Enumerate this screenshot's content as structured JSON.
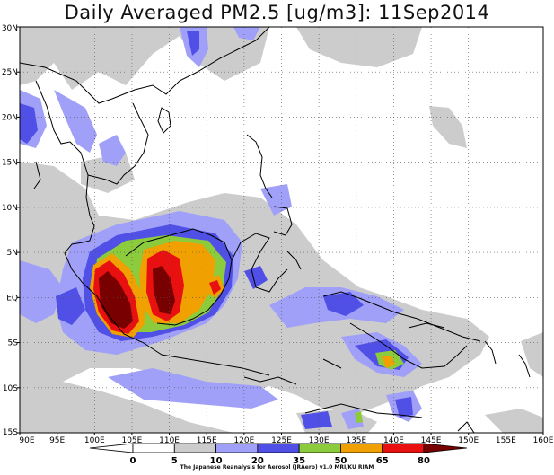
{
  "title": "Daily Averaged PM2.5 [ug/m3]: 11Sep2014",
  "credit": "The Japanese Reanalysis for Aerosol (JRAero) v1.0 MRI/KU RIAM",
  "map": {
    "lon_range": [
      90,
      160
    ],
    "lat_range": [
      -15,
      30
    ],
    "lon_ticks": [
      "90E",
      "95E",
      "100E",
      "105E",
      "110E",
      "115E",
      "120E",
      "125E",
      "130E",
      "135E",
      "140E",
      "145E",
      "150E",
      "155E",
      "160E"
    ],
    "lat_ticks": [
      "30N",
      "25N",
      "20N",
      "15N",
      "10N",
      "5N",
      "EQ",
      "5S",
      "10S",
      "15S"
    ],
    "grid": "dotted"
  },
  "colorbar": {
    "labels": [
      "0",
      "5",
      "10",
      "20",
      "35",
      "50",
      "65",
      "80"
    ],
    "colors": [
      "#ffffff",
      "#ffffff",
      "#cccccc",
      "#a0a0f8",
      "#5050e6",
      "#8ccc3c",
      "#f0a000",
      "#e81010",
      "#780000"
    ]
  }
}
